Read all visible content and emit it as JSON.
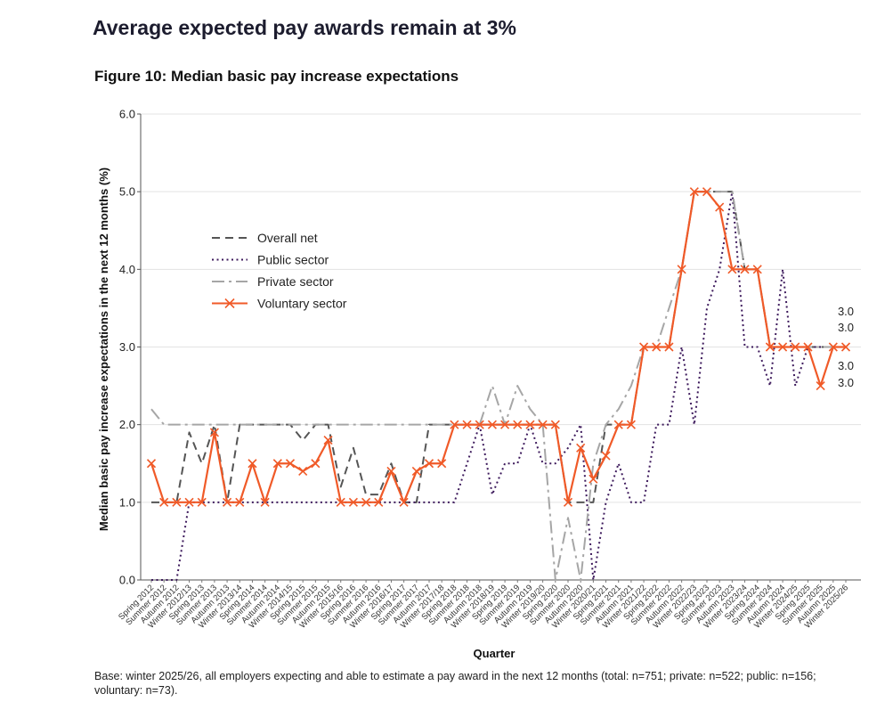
{
  "header": {
    "title": "Average expected pay awards remain at 3%",
    "figure_title": "Figure 10: Median basic pay increase expectations"
  },
  "footer": {
    "base_note": "Base: winter 2025/26, all employers expecting and able to estimate a pay award in the next 12 months (total: n=751; private: n=522; public: n=156; voluntary: n=73)."
  },
  "chart_data": {
    "type": "line",
    "title": "Figure 10: Median basic pay increase expectations",
    "xlabel": "Quarter",
    "ylabel": "Median basic pay increase expectations in the next 12 months (%)",
    "ylim": [
      0,
      6
    ],
    "yticks": [
      "0.0",
      "1.0",
      "2.0",
      "3.0",
      "4.0",
      "5.0",
      "6.0"
    ],
    "grid": "horizontal",
    "legend_position": "upper-left",
    "categories": [
      "Spring 2012",
      "Summer 2012",
      "Autumn 2012",
      "Winter 2012/13",
      "Spring 2013",
      "Summer 2013",
      "Autumn 2013",
      "Winter 2013/14",
      "Spring 2014",
      "Summer 2014",
      "Autumn 2014",
      "Winter 2014/15",
      "Spring 2015",
      "Summer 2015",
      "Autumn 2015",
      "Winter 2015/16",
      "Spring 2016",
      "Summer 2016",
      "Autumn 2016",
      "Winter 2016/17",
      "Spring 2017",
      "Summer 2017",
      "Autumn 2017",
      "Winter 2017/18",
      "Spring 2018",
      "Summer 2018",
      "Autumn 2018",
      "Winter 2018/19",
      "Spring 2019",
      "Summer 2019",
      "Autumn 2019",
      "Winter 2019/20",
      "Spring 2020",
      "Summer 2020",
      "Autumn 2020",
      "Winter 2020/21",
      "Spring 2021",
      "Summer 2021",
      "Autumn 2021",
      "Winter 2021/22",
      "Spring 2022",
      "Summer 2022",
      "Autumn 2022",
      "Winter 2022/23",
      "Spring 2023",
      "Summer 2023",
      "Autumn 2023",
      "Winter 2023/24",
      "Spring 2024",
      "Summer 2024",
      "Autumn 2024",
      "Winter 2024/25",
      "Spring 2025",
      "Summer 2025",
      "Autumn 2025",
      "Winter 2025/26"
    ],
    "series": [
      {
        "name": "Overall net",
        "color": "#555555",
        "dash": "9,6",
        "marker": "none",
        "values": [
          1.0,
          1.0,
          1.0,
          1.9,
          1.5,
          2.0,
          1.0,
          2.0,
          2.0,
          2.0,
          2.0,
          2.0,
          1.8,
          2.0,
          2.0,
          1.2,
          1.7,
          1.1,
          1.1,
          1.5,
          1.0,
          1.0,
          2.0,
          2.0,
          2.0,
          2.0,
          2.0,
          2.0,
          2.0,
          2.0,
          2.0,
          2.0,
          2.0,
          1.0,
          1.0,
          1.0,
          2.0,
          2.0,
          2.0,
          3.0,
          3.0,
          3.0,
          4.0,
          5.0,
          5.0,
          5.0,
          5.0,
          4.0,
          4.0,
          3.0,
          3.0,
          3.0,
          3.0,
          3.0,
          3.0,
          3.0
        ]
      },
      {
        "name": "Public sector",
        "color": "#3d1a5c",
        "dash": "2,3.5",
        "marker": "none",
        "values": [
          0.0,
          0.0,
          0.0,
          1.0,
          1.0,
          1.0,
          1.0,
          1.0,
          1.0,
          1.0,
          1.0,
          1.0,
          1.0,
          1.0,
          1.0,
          1.0,
          1.0,
          1.0,
          1.0,
          1.0,
          1.0,
          1.0,
          1.0,
          1.0,
          1.0,
          1.5,
          2.0,
          1.1,
          1.5,
          1.5,
          2.0,
          1.5,
          1.5,
          1.7,
          2.0,
          0.0,
          1.0,
          1.5,
          1.0,
          1.0,
          2.0,
          2.0,
          3.0,
          2.0,
          3.5,
          4.0,
          5.0,
          3.0,
          3.0,
          2.5,
          4.0,
          2.5,
          3.0,
          3.0,
          3.0,
          3.0
        ]
      },
      {
        "name": "Private sector",
        "color": "#a6a6a6",
        "dash": "14,5,3,5",
        "marker": "none",
        "values": [
          2.2,
          2.0,
          2.0,
          2.0,
          2.0,
          2.0,
          2.0,
          2.0,
          2.0,
          2.0,
          2.0,
          2.0,
          2.0,
          2.0,
          2.0,
          2.0,
          2.0,
          2.0,
          2.0,
          2.0,
          2.0,
          2.0,
          2.0,
          2.0,
          2.0,
          2.0,
          2.0,
          2.5,
          2.0,
          2.5,
          2.2,
          2.0,
          0.0,
          0.8,
          0.0,
          1.5,
          2.0,
          2.2,
          2.5,
          3.0,
          3.0,
          3.5,
          4.0,
          5.0,
          5.0,
          5.0,
          5.0,
          4.0,
          4.0,
          3.0,
          3.0,
          3.0,
          3.0,
          3.0,
          3.0,
          3.0
        ]
      },
      {
        "name": "Voluntary sector",
        "color": "#f05a28",
        "dash": "",
        "marker": "x",
        "values": [
          1.5,
          1.0,
          1.0,
          1.0,
          1.0,
          1.9,
          1.0,
          1.0,
          1.5,
          1.0,
          1.5,
          1.5,
          1.4,
          1.5,
          1.8,
          1.0,
          1.0,
          1.0,
          1.0,
          1.4,
          1.0,
          1.4,
          1.5,
          1.5,
          2.0,
          2.0,
          2.0,
          2.0,
          2.0,
          2.0,
          2.0,
          2.0,
          2.0,
          1.0,
          1.7,
          1.3,
          1.6,
          2.0,
          2.0,
          3.0,
          3.0,
          3.0,
          4.0,
          5.0,
          5.0,
          4.8,
          4.0,
          4.0,
          4.0,
          3.0,
          3.0,
          3.0,
          3.0,
          2.5,
          3.0,
          3.0
        ]
      }
    ],
    "end_labels": [
      "3.0",
      "3.0",
      "3.0",
      "3.0"
    ]
  }
}
